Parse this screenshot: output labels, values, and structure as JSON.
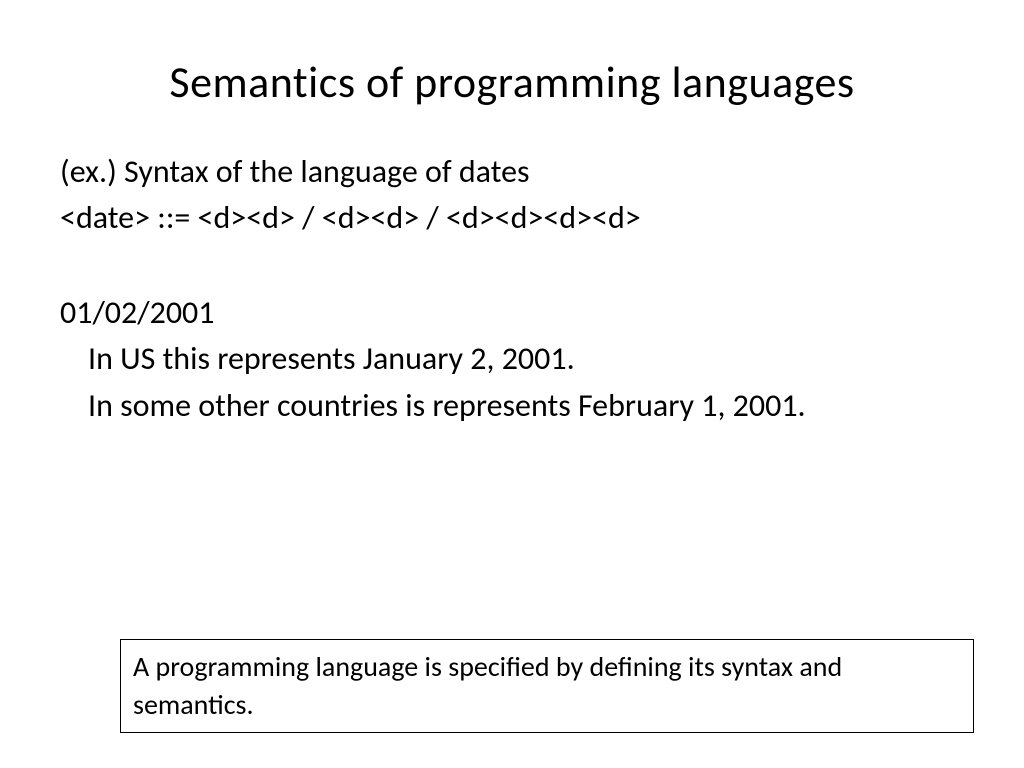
{
  "slide": {
    "title": "Semantics of programming languages",
    "body": {
      "line1": "(ex.) Syntax of the language of dates",
      "line2": "<date> ::= <d><d> / <d><d> / <d><d><d><d>",
      "line3": "01/02/2001",
      "line4": "In US this represents January 2, 2001.",
      "line5": "In some other countries is represents February 1, 2001."
    },
    "callout": "A programming language is specified by defining its syntax and semantics."
  },
  "styling": {
    "background_color": "#ffffff",
    "text_color": "#000000",
    "title_fontsize": 44,
    "body_fontsize": 32,
    "callout_fontsize": 28,
    "font_family": "Calibri",
    "callout_border_color": "#000000",
    "callout_border_width": 1
  }
}
